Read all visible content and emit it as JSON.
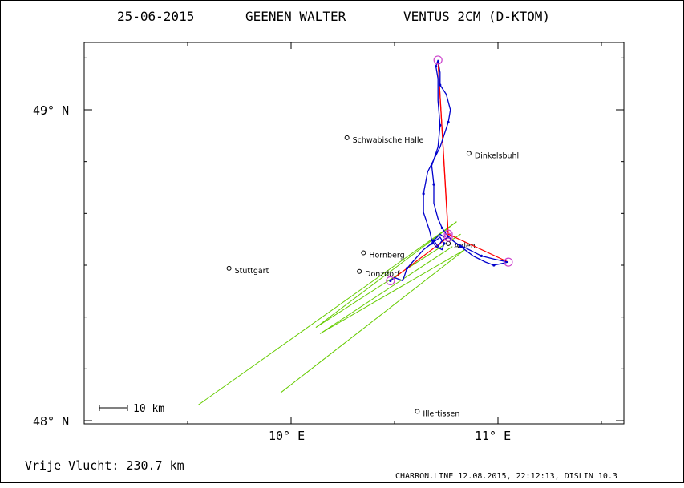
{
  "title": {
    "date": "25-06-2015",
    "pilot": "GEENEN WALTER",
    "glider": "VENTUS 2CM (D-KTOM)"
  },
  "axes": {
    "lat_ticks": [
      {
        "value": 49.0,
        "label": "49° N"
      },
      {
        "value": 48.0,
        "label": "48° N"
      }
    ],
    "lon_ticks": [
      {
        "value": 10.0,
        "label": "10° E"
      },
      {
        "value": 11.0,
        "label": "11° E"
      }
    ]
  },
  "scale_bar": {
    "label": "10 km"
  },
  "places": [
    {
      "name": "Schwabische Halle",
      "lon": 10.27,
      "lat": 48.91
    },
    {
      "name": "Dinkelsbuhl",
      "lon": 10.86,
      "lat": 48.86
    },
    {
      "name": "Hornberg",
      "lon": 10.35,
      "lat": 48.54
    },
    {
      "name": "Stuttgart",
      "lon": 9.7,
      "lat": 48.49
    },
    {
      "name": "Donzdorf",
      "lon": 10.33,
      "lat": 48.48
    },
    {
      "name": "Aalen",
      "lon": 10.76,
      "lat": 48.57
    },
    {
      "name": "Illertissen",
      "lon": 10.61,
      "lat": 48.03
    }
  ],
  "task": {
    "points": [
      {
        "lon": 10.48,
        "lat": 48.45
      },
      {
        "lon": 10.76,
        "lat": 48.59
      },
      {
        "lon": 10.71,
        "lat": 49.16
      },
      {
        "lon": 10.76,
        "lat": 48.6
      },
      {
        "lon": 11.05,
        "lat": 48.51
      }
    ]
  },
  "track": {
    "points": [
      [
        10.48,
        48.45
      ],
      [
        10.5,
        48.46
      ],
      [
        10.54,
        48.45
      ],
      [
        10.56,
        48.49
      ],
      [
        10.6,
        48.52
      ],
      [
        10.64,
        48.55
      ],
      [
        10.68,
        48.57
      ],
      [
        10.7,
        48.58
      ],
      [
        10.72,
        48.59
      ],
      [
        10.74,
        48.57
      ],
      [
        10.73,
        48.55
      ],
      [
        10.7,
        48.56
      ],
      [
        10.68,
        48.58
      ],
      [
        10.67,
        48.61
      ],
      [
        10.64,
        48.67
      ],
      [
        10.64,
        48.73
      ],
      [
        10.66,
        48.8
      ],
      [
        10.72,
        48.88
      ],
      [
        10.76,
        48.96
      ],
      [
        10.77,
        49.0
      ],
      [
        10.75,
        49.05
      ],
      [
        10.72,
        49.08
      ],
      [
        10.72,
        49.12
      ],
      [
        10.71,
        49.16
      ],
      [
        10.7,
        49.14
      ],
      [
        10.71,
        49.1
      ],
      [
        10.71,
        49.03
      ],
      [
        10.72,
        48.95
      ],
      [
        10.71,
        48.88
      ],
      [
        10.68,
        48.82
      ],
      [
        10.69,
        48.76
      ],
      [
        10.69,
        48.7
      ],
      [
        10.71,
        48.65
      ],
      [
        10.73,
        48.62
      ],
      [
        10.75,
        48.6
      ],
      [
        10.78,
        48.58
      ],
      [
        10.82,
        48.56
      ],
      [
        10.88,
        48.53
      ],
      [
        10.94,
        48.51
      ],
      [
        10.98,
        48.5
      ],
      [
        11.05,
        48.51
      ],
      [
        10.98,
        48.52
      ],
      [
        10.92,
        48.53
      ],
      [
        10.86,
        48.55
      ],
      [
        10.8,
        48.57
      ],
      [
        10.76,
        48.59
      ],
      [
        10.73,
        48.58
      ],
      [
        10.71,
        48.56
      ],
      [
        10.69,
        48.58
      ],
      [
        10.72,
        48.6
      ],
      [
        10.74,
        48.59
      ]
    ]
  },
  "retrieve_lines": {
    "segments": [
      [
        [
          9.55,
          48.05
        ],
        [
          10.8,
          48.64
        ]
      ],
      [
        [
          10.8,
          48.64
        ],
        [
          10.12,
          48.3
        ]
      ],
      [
        [
          10.12,
          48.3
        ],
        [
          10.82,
          48.6
        ]
      ],
      [
        [
          9.95,
          48.09
        ],
        [
          10.84,
          48.55
        ]
      ],
      [
        [
          10.84,
          48.55
        ],
        [
          10.14,
          48.28
        ]
      ],
      [
        [
          10.14,
          48.28
        ],
        [
          10.78,
          48.56
        ]
      ]
    ]
  },
  "colors": {
    "track": "#0000cc",
    "task": "#ff0000",
    "turnpoint": "#cc44cc",
    "retrieve": "#66cc00"
  },
  "footer": {
    "distance": "Vrije Vlucht:  230.7 km",
    "credit": "CHARRON.LINE 12.08.2015, 22:12:13, DISLIN 10.3"
  }
}
